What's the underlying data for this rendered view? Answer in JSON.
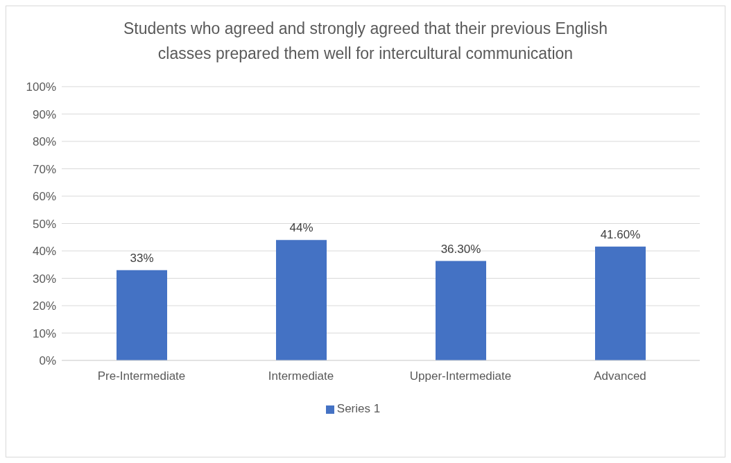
{
  "chart_data": {
    "type": "bar",
    "title": "Students who agreed and strongly agreed that their previous English classes prepared them well for intercultural communication",
    "categories": [
      "Pre-Intermediate",
      "Intermediate",
      "Upper-Intermediate",
      "Advanced"
    ],
    "series": [
      {
        "name": "Series 1",
        "color": "#4472c4",
        "values": [
          33,
          44,
          36.3,
          41.6
        ],
        "value_labels": [
          "33%",
          "44%",
          "36.30%",
          "41.60%"
        ]
      }
    ],
    "ylim": [
      0,
      100
    ],
    "yticks": [
      {
        "value": 0,
        "label": "0%"
      },
      {
        "value": 10,
        "label": "10%"
      },
      {
        "value": 20,
        "label": "20%"
      },
      {
        "value": 30,
        "label": "30%"
      },
      {
        "value": 40,
        "label": "40%"
      },
      {
        "value": 50,
        "label": "50%"
      },
      {
        "value": 60,
        "label": "60%"
      },
      {
        "value": 70,
        "label": "70%"
      },
      {
        "value": 80,
        "label": "80%"
      },
      {
        "value": 90,
        "label": "90%"
      },
      {
        "value": 100,
        "label": "100%"
      }
    ],
    "grid": "y",
    "legend": "bottom"
  }
}
